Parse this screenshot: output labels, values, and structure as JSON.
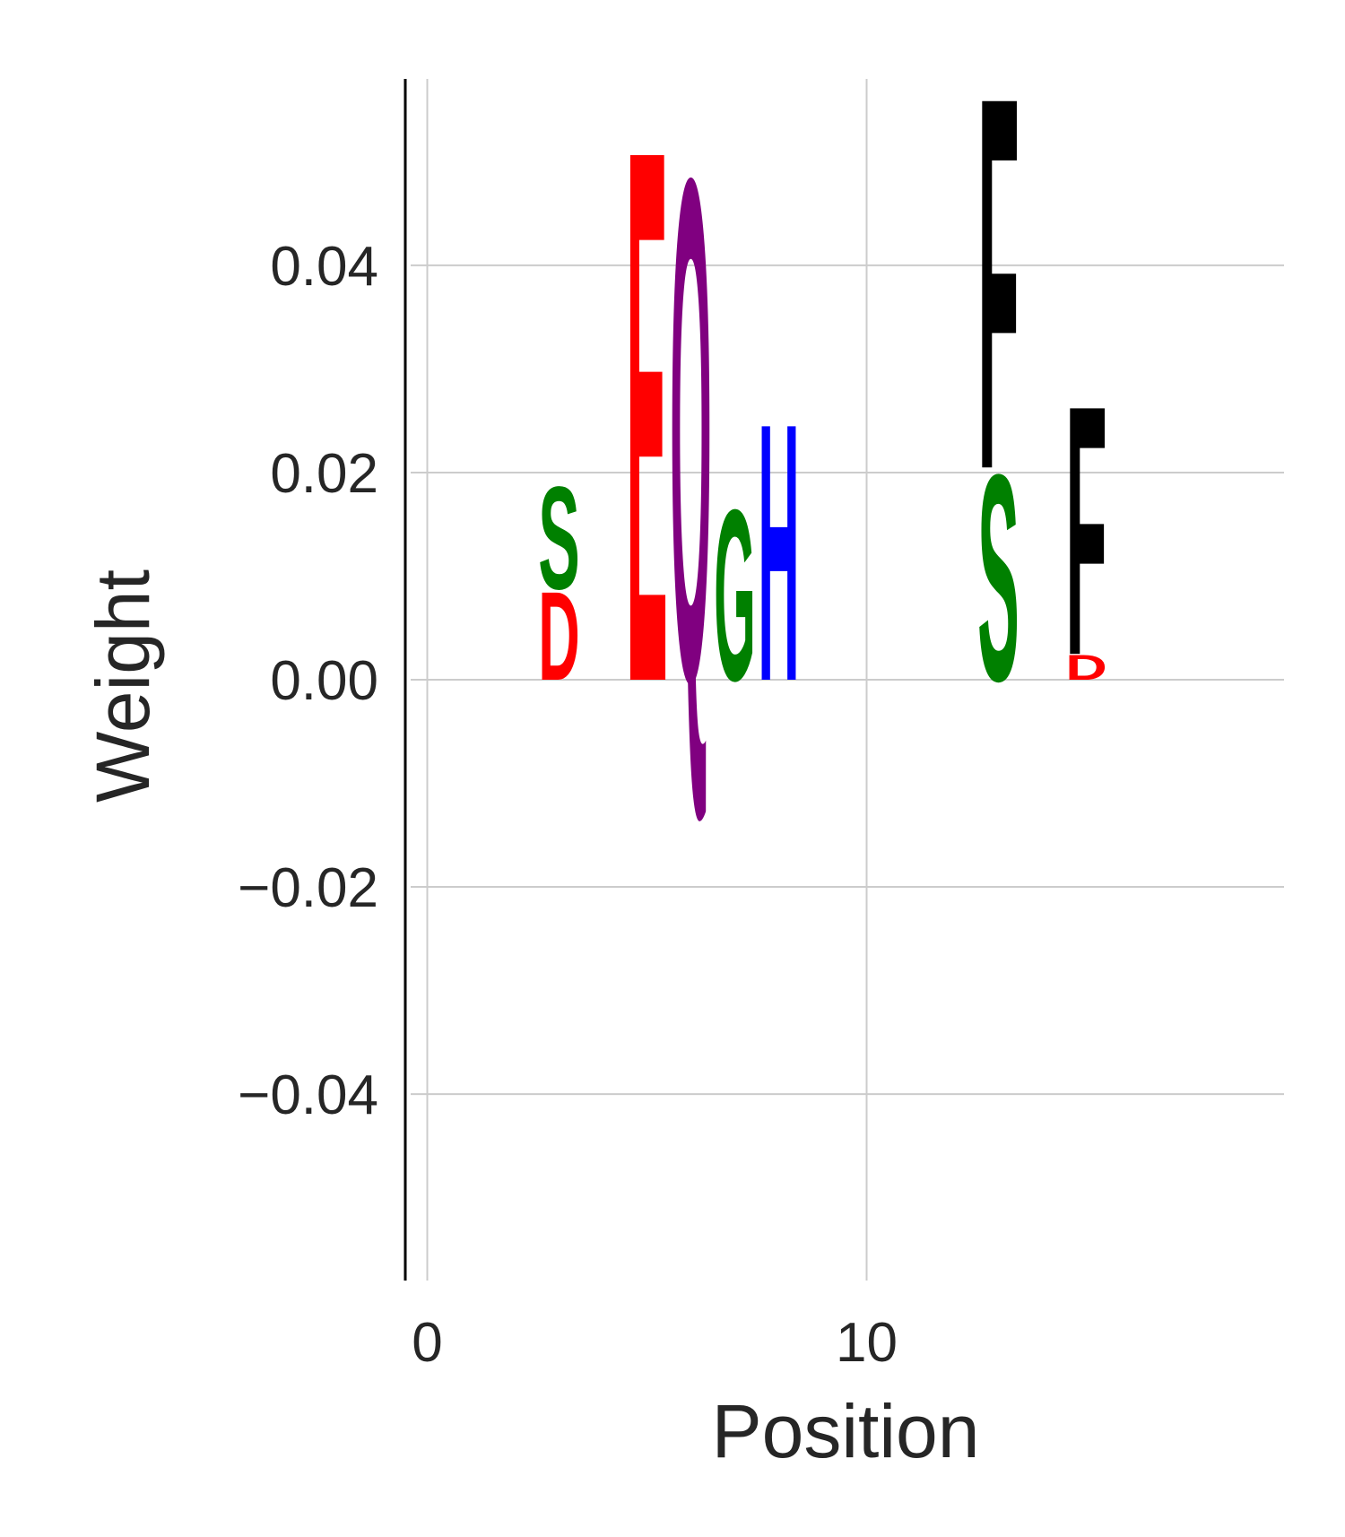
{
  "chart_data": {
    "type": "sequence-logo",
    "xlabel": "Position",
    "ylabel": "Weight",
    "xlim": [
      -0.5,
      19.5
    ],
    "ylim": [
      -0.058,
      0.058
    ],
    "x_ticks": [
      {
        "value": 0,
        "label": "0"
      },
      {
        "value": 10,
        "label": "10"
      }
    ],
    "y_ticks": [
      {
        "value": -0.04,
        "label": "−0.04"
      },
      {
        "value": -0.02,
        "label": "−0.02"
      },
      {
        "value": 0.0,
        "label": "0.00"
      },
      {
        "value": 0.02,
        "label": "0.02"
      },
      {
        "value": 0.04,
        "label": "0.04"
      }
    ],
    "grid": true,
    "colors": {
      "acidic": "#ff0000",
      "polar": "#008000",
      "hydrophobic": "#000000",
      "amide": "#800080",
      "basic": "#0000ff",
      "grid": "#cccccc",
      "axis": "#000000",
      "text": "#262626"
    },
    "letters": [
      {
        "position": 3,
        "letter": "D",
        "bottom": 0.0,
        "top": 0.0088,
        "color": "#ff0000"
      },
      {
        "position": 3,
        "letter": "S",
        "bottom": 0.0088,
        "top": 0.019,
        "color": "#008000"
      },
      {
        "position": 5,
        "letter": "E",
        "bottom": 0.0,
        "top": 0.053,
        "color": "#ff0000"
      },
      {
        "position": 6,
        "letter": "Q",
        "bottom": 0.0,
        "top": 0.05,
        "color": "#800080"
      },
      {
        "position": 7,
        "letter": "G",
        "bottom": 0.0,
        "top": 0.017,
        "color": "#008000"
      },
      {
        "position": 8,
        "letter": "H",
        "bottom": 0.0,
        "top": 0.0256,
        "color": "#0000ff"
      },
      {
        "position": 13,
        "letter": "S",
        "bottom": 0.0,
        "top": 0.0205,
        "color": "#008000"
      },
      {
        "position": 13,
        "letter": "F",
        "bottom": 0.0205,
        "top": 0.0575,
        "color": "#000000"
      },
      {
        "position": 15,
        "letter": "D",
        "bottom": 0.0,
        "top": 0.0025,
        "color": "#ff0000"
      },
      {
        "position": 15,
        "letter": "F",
        "bottom": 0.0025,
        "top": 0.0273,
        "color": "#000000"
      }
    ]
  }
}
